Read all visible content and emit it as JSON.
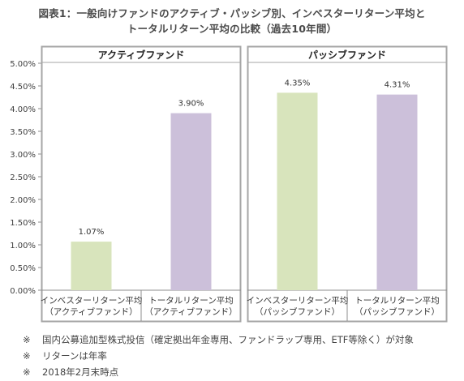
{
  "title_line1": "図表1：一般向けファンドのアクティブ・パッシブ別、インベスターリターン平均と",
  "title_line2": "トータルリターン平均の比較（過去10年間）",
  "chart_data": {
    "type": "bar",
    "panels": [
      {
        "title": "アクティブファンド",
        "categories": [
          [
            "インベスターリターン平均",
            "（アクティブファンド）"
          ],
          [
            "トータルリターン平均",
            "（アクティブファンド）"
          ]
        ],
        "values": [
          1.07,
          3.9
        ],
        "data_labels": [
          "1.07%",
          "3.90%"
        ],
        "colors": [
          "#d8e4bc",
          "#ccc0da"
        ]
      },
      {
        "title": "パッシブファンド",
        "categories": [
          [
            "インベスターリターン平均",
            "（パッシブファンド）"
          ],
          [
            "トータルリターン平均",
            "（パッシブファンド）"
          ]
        ],
        "values": [
          4.35,
          4.31
        ],
        "data_labels": [
          "4.35%",
          "4.31%"
        ],
        "colors": [
          "#d8e4bc",
          "#ccc0da"
        ]
      }
    ],
    "ylim": [
      0,
      5
    ],
    "yticks": [
      0,
      0.5,
      1,
      1.5,
      2,
      2.5,
      3,
      3.5,
      4,
      4.5,
      5
    ],
    "ytick_labels": [
      "0.00%",
      "0.50%",
      "1.00%",
      "1.50%",
      "2.00%",
      "2.50%",
      "3.00%",
      "3.50%",
      "4.00%",
      "4.50%",
      "5.00%"
    ],
    "grid": false,
    "legend": "none"
  },
  "notes": [
    {
      "mark": "※",
      "text": "国内公募追加型株式投信（確定拠出年金専用、ファンドラップ専用、ETF等除く）が対象"
    },
    {
      "mark": "※",
      "text": "リターンは年率"
    },
    {
      "mark": "※",
      "text": "2018年2月末時点"
    }
  ]
}
